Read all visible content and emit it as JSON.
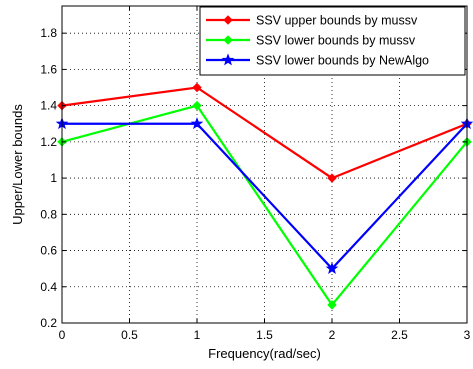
{
  "chart_data": {
    "type": "line",
    "title": "",
    "xlabel": "Frequency(rad/sec)",
    "ylabel": "Upper/Lower bounds",
    "xlim": [
      0,
      3
    ],
    "ylim": [
      0.2,
      1.95
    ],
    "x": [
      0,
      1,
      2,
      3
    ],
    "xticks": [
      0,
      0.5,
      1,
      1.5,
      2,
      2.5,
      3
    ],
    "xtick_labels": [
      "0",
      "0.5",
      "1",
      "1.5",
      "2",
      "2.5",
      "3"
    ],
    "yticks": [
      0.2,
      0.4,
      0.6,
      0.8,
      1.0,
      1.2,
      1.4,
      1.6,
      1.8
    ],
    "ytick_labels": [
      "0.2",
      "0.4",
      "0.6",
      "0.8",
      "1",
      "1.2",
      "1.4",
      "1.6",
      "1.8"
    ],
    "grid": true,
    "legend_position": "top-right",
    "series": [
      {
        "name": "SSV upper bounds by mussv",
        "color": "#ff0000",
        "marker": "diamond",
        "values": [
          1.4,
          1.5,
          1.0,
          1.3
        ]
      },
      {
        "name": "SSV lower bounds by mussv",
        "color": "#00ff00",
        "marker": "diamond",
        "values": [
          1.2,
          1.4,
          0.3,
          1.2
        ]
      },
      {
        "name": "SSV lower bounds by NewAlgo",
        "color": "#0000ff",
        "marker": "star",
        "values": [
          1.3,
          1.3,
          0.5,
          1.3
        ]
      }
    ]
  }
}
